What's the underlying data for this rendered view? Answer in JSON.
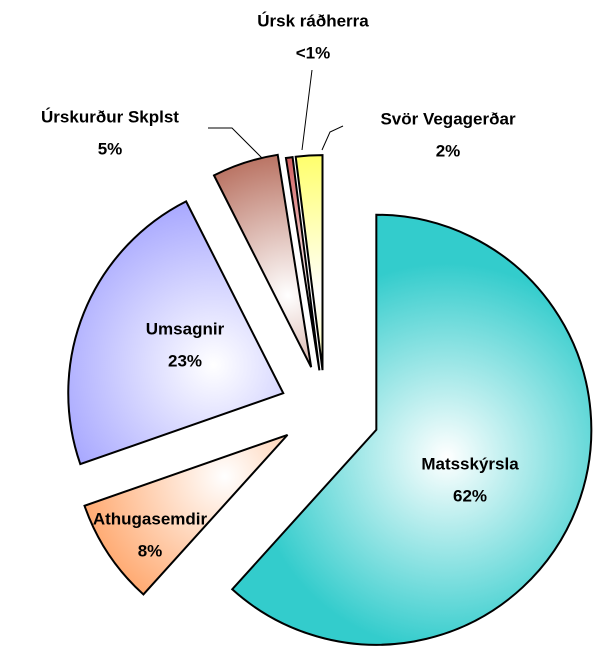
{
  "chart_data": {
    "type": "pie",
    "categories": [
      "Matsskýrsla",
      "Athugasemdir",
      "Umsagnir",
      "Úrskurður Skplst",
      "Úrsk ráðherra",
      "Svör Vegagerðar"
    ],
    "values": [
      62,
      8,
      23,
      5,
      0.5,
      2
    ],
    "value_labels": [
      "62%",
      "8%",
      "23%",
      "5%",
      "<1%",
      "2%"
    ],
    "colors": [
      "#33cccc",
      "#ff8c40",
      "#9999ff",
      "#a0402a",
      "#c02020",
      "#ffff33"
    ]
  }
}
